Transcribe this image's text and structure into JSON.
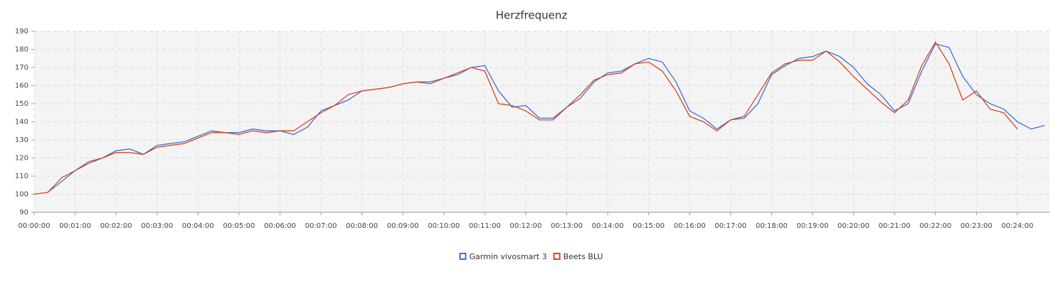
{
  "chart_data": {
    "type": "line",
    "title": "Herzfrequenz",
    "x": [
      0,
      20,
      40,
      60,
      80,
      100,
      120,
      140,
      160,
      180,
      200,
      220,
      240,
      260,
      280,
      300,
      320,
      340,
      360,
      380,
      400,
      420,
      440,
      460,
      480,
      500,
      520,
      540,
      560,
      580,
      600,
      620,
      640,
      660,
      680,
      700,
      720,
      740,
      760,
      780,
      800,
      820,
      840,
      860,
      880,
      900,
      920,
      940,
      960,
      980,
      1000,
      1020,
      1040,
      1060,
      1080,
      1100,
      1120,
      1140,
      1160,
      1180,
      1200,
      1220,
      1240,
      1260,
      1280,
      1300,
      1320,
      1340,
      1360,
      1380,
      1400,
      1420,
      1440,
      1460,
      1480
    ],
    "series": [
      {
        "name": "Garmin vivosmart 3",
        "color": "#3b6fd6",
        "values": [
          null,
          101,
          107,
          113,
          117,
          120,
          124,
          125,
          122,
          127,
          128,
          129,
          132,
          135,
          134,
          134,
          136,
          135,
          135,
          133,
          137,
          146,
          149,
          152,
          157,
          158,
          159,
          161,
          162,
          162,
          164,
          166,
          170,
          171,
          157,
          148,
          149,
          142,
          142,
          148,
          153,
          162,
          167,
          168,
          172,
          175,
          173,
          162,
          146,
          142,
          136,
          141,
          142,
          150,
          166,
          171,
          175,
          176,
          179,
          176,
          170,
          161,
          155,
          146,
          150,
          168,
          183,
          181,
          165,
          155,
          150,
          147,
          140,
          136,
          138
        ]
      },
      {
        "name": "Beets BLU",
        "color": "#d9431c",
        "values": [
          100,
          101,
          109,
          113,
          118,
          120,
          123,
          123,
          122,
          126,
          127,
          128,
          131,
          134,
          134,
          133,
          135,
          134,
          135,
          135,
          140,
          145,
          149,
          155,
          157,
          158,
          159,
          161,
          162,
          161,
          164,
          167,
          170,
          168,
          150,
          149,
          146,
          141,
          141,
          148,
          155,
          163,
          166,
          167,
          172,
          173,
          168,
          157,
          143,
          140,
          135,
          141,
          143,
          155,
          167,
          172,
          174,
          174,
          179,
          173,
          165,
          158,
          151,
          145,
          152,
          171,
          184,
          172,
          152,
          157,
          147,
          145,
          136,
          null,
          null
        ]
      }
    ],
    "xlim": [
      0,
      1487
    ],
    "ylim": [
      90,
      190
    ],
    "yticks": [
      90,
      100,
      110,
      120,
      130,
      140,
      150,
      160,
      170,
      180,
      190
    ],
    "xticks": [
      {
        "value": 0,
        "label": "00:00:00"
      },
      {
        "value": 60,
        "label": "00:01:00"
      },
      {
        "value": 120,
        "label": "00:02:00"
      },
      {
        "value": 180,
        "label": "00:03:00"
      },
      {
        "value": 240,
        "label": "00:04:00"
      },
      {
        "value": 300,
        "label": "00:05:00"
      },
      {
        "value": 360,
        "label": "00:06:00"
      },
      {
        "value": 420,
        "label": "00:07:00"
      },
      {
        "value": 480,
        "label": "00:08:00"
      },
      {
        "value": 540,
        "label": "00:09:00"
      },
      {
        "value": 600,
        "label": "00:10:00"
      },
      {
        "value": 660,
        "label": "00:11:00"
      },
      {
        "value": 720,
        "label": "00:12:00"
      },
      {
        "value": 780,
        "label": "00:13:00"
      },
      {
        "value": 840,
        "label": "00:14:00"
      },
      {
        "value": 900,
        "label": "00:15:00"
      },
      {
        "value": 960,
        "label": "00:16:00"
      },
      {
        "value": 1020,
        "label": "00:17:00"
      },
      {
        "value": 1080,
        "label": "00:18:00"
      },
      {
        "value": 1140,
        "label": "00:19:00"
      },
      {
        "value": 1200,
        "label": "00:20:00"
      },
      {
        "value": 1260,
        "label": "00:21:00"
      },
      {
        "value": 1320,
        "label": "00:22:00"
      },
      {
        "value": 1380,
        "label": "00:23:00"
      },
      {
        "value": 1440,
        "label": "00:24:00"
      }
    ],
    "grid": true,
    "legend": "bottom"
  }
}
